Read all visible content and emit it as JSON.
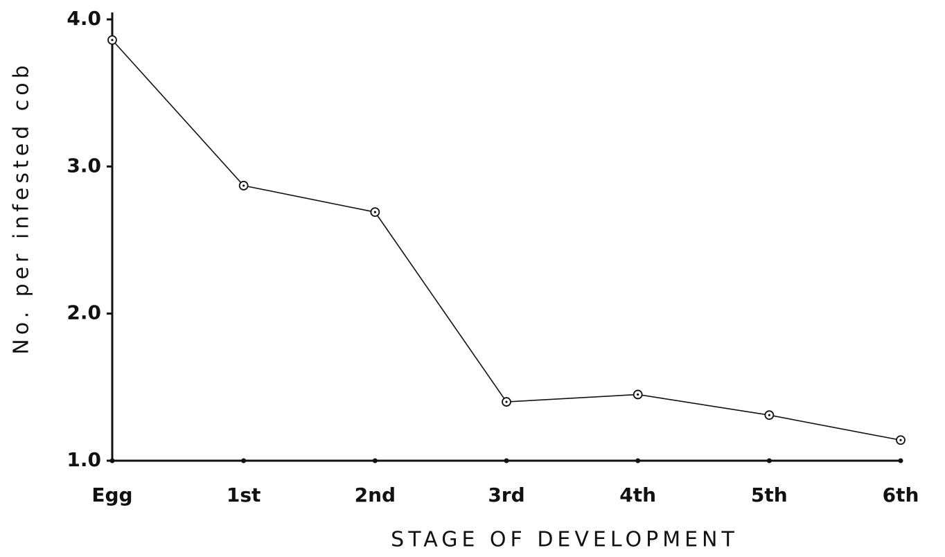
{
  "chart_data": {
    "type": "line",
    "x_label": "STAGE OF DEVELOPMENT",
    "y_label": "No. per infested cob",
    "categories": [
      "Egg",
      "1st",
      "2nd",
      "3rd",
      "4th",
      "5th",
      "6th"
    ],
    "series": [
      {
        "name": "No. per infested cob",
        "color": "#111111",
        "values": [
          3.86,
          2.87,
          2.69,
          1.4,
          1.45,
          1.31,
          1.14
        ]
      }
    ],
    "ylim": [
      1,
      4
    ],
    "yticks": [
      {
        "value": 1,
        "label": "1.0"
      },
      {
        "value": 2,
        "label": "2.0"
      },
      {
        "value": 3,
        "label": "3.0"
      },
      {
        "value": 4,
        "label": "4.0"
      }
    ],
    "grid": false
  }
}
